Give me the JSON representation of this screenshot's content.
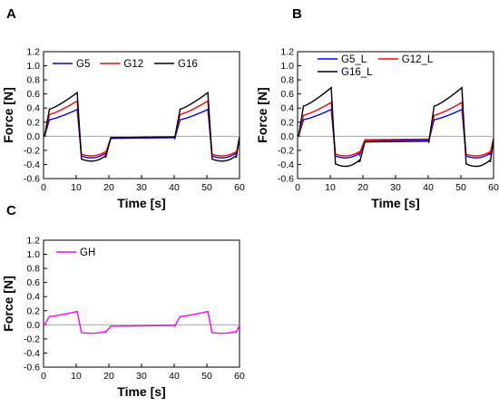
{
  "chart_data": [
    {
      "panel": "A",
      "type": "line",
      "xlabel": "Time [s]",
      "ylabel": "Force [N]",
      "xlim": [
        0,
        60
      ],
      "ylim": [
        -0.6,
        1.2
      ],
      "xticks": [
        "0",
        "10",
        "20",
        "30",
        "40",
        "50",
        "60"
      ],
      "yticks": [
        "-0.6",
        "-0.4",
        "-0.2",
        "0.0",
        "0.2",
        "0.4",
        "0.6",
        "0.8",
        "1.0",
        "1.2"
      ],
      "reference_line_y": 0,
      "legend_layout": "row",
      "series": [
        {
          "name": "G5",
          "color": "#0000ff",
          "peak": 0.38,
          "trough": -0.33,
          "rest": -0.03
        },
        {
          "name": "G12",
          "color": "#ff0000",
          "peak": 0.5,
          "trough": -0.3,
          "rest": -0.02
        },
        {
          "name": "G16",
          "color": "#000000",
          "peak": 0.62,
          "trough": -0.38,
          "rest": -0.02
        }
      ]
    },
    {
      "panel": "B",
      "type": "line",
      "xlabel": "Time [s]",
      "ylabel": "Force [N]",
      "xlim": [
        0,
        60
      ],
      "ylim": [
        -0.6,
        1.2
      ],
      "xticks": [
        "0",
        "10",
        "20",
        "30",
        "40",
        "50",
        "60"
      ],
      "yticks": [
        "-0.6",
        "-0.4",
        "-0.2",
        "0.0",
        "0.2",
        "0.4",
        "0.6",
        "0.8",
        "1.0",
        "1.2"
      ],
      "reference_line_y": 0,
      "legend_layout": "two-rows",
      "series": [
        {
          "name": "G5_L",
          "color": "#0000ff",
          "peak": 0.38,
          "trough": -0.33,
          "rest": -0.06
        },
        {
          "name": "G12_L",
          "color": "#ff0000",
          "peak": 0.48,
          "trough": -0.3,
          "rest": -0.05
        },
        {
          "name": "G16_L",
          "color": "#000000",
          "peak": 0.69,
          "trough": -0.46,
          "rest": -0.08
        }
      ]
    },
    {
      "panel": "C",
      "type": "line",
      "xlabel": "Time [s]",
      "ylabel": "Force [N]",
      "xlim": [
        0,
        60
      ],
      "ylim": [
        -0.6,
        1.2
      ],
      "xticks": [
        "0",
        "10",
        "20",
        "30",
        "40",
        "50",
        "60"
      ],
      "yticks": [
        "-0.6",
        "-0.4",
        "-0.2",
        "0.0",
        "0.2",
        "0.4",
        "0.6",
        "0.8",
        "1.0",
        "1.2"
      ],
      "reference_line_y": 0,
      "legend_layout": "row",
      "series": [
        {
          "name": "GH",
          "color": "#ff00ff",
          "peak": 0.19,
          "trough": -0.13,
          "rest": -0.02
        }
      ]
    }
  ]
}
